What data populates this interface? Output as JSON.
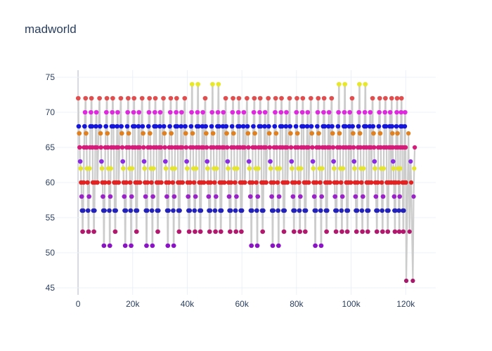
{
  "chart_data": {
    "type": "scatter",
    "title": "madworld",
    "xlabel": "",
    "ylabel": "",
    "xlim": [
      -8000,
      131000
    ],
    "ylim": [
      44,
      76
    ],
    "x_ticks": [
      0,
      20000,
      40000,
      60000,
      80000,
      100000,
      120000
    ],
    "x_tick_labels": [
      "0",
      "20k",
      "40k",
      "60k",
      "80k",
      "100k",
      "120k"
    ],
    "y_ticks": [
      45,
      50,
      55,
      60,
      65,
      70,
      75
    ],
    "y_tick_labels": [
      "45",
      "50",
      "55",
      "60",
      "65",
      "70",
      "75"
    ],
    "grid": true,
    "legend": "none",
    "line_color": "#cccccc",
    "pitch_colors": {
      "46": "#a6196b",
      "51": "#8b12c7",
      "53": "#b3176e",
      "55": "#c26a1a",
      "56": "#2222bb",
      "58": "#9b22c9",
      "60": "#e52222",
      "62": "#e5e52e",
      "63": "#8b2be2",
      "65": "#d81b7a",
      "67": "#e0801f",
      "68": "#1515e0",
      "70": "#e028e0",
      "72": "#e24d4d",
      "74": "#e8e829"
    },
    "section_pattern": [
      [
        0,
        72
      ],
      [
        1,
        68
      ],
      [
        2,
        67
      ],
      [
        3,
        65
      ],
      [
        4,
        63
      ],
      [
        5,
        62
      ],
      [
        6,
        60
      ],
      [
        7,
        58
      ],
      [
        8,
        56
      ],
      [
        9,
        53
      ],
      [
        10,
        56
      ],
      [
        11,
        60
      ],
      [
        12,
        65
      ],
      [
        13,
        68
      ],
      [
        14,
        70
      ],
      [
        15,
        72
      ],
      [
        16,
        67
      ],
      [
        17,
        65
      ],
      [
        18,
        62
      ],
      [
        19,
        60
      ],
      [
        20,
        56
      ],
      [
        21,
        53
      ],
      [
        22,
        58
      ],
      [
        23,
        62
      ],
      [
        24,
        65
      ],
      [
        25,
        68
      ],
      [
        26,
        70
      ],
      [
        27,
        72
      ],
      [
        28,
        68
      ],
      [
        29,
        65
      ],
      [
        30,
        60
      ],
      [
        31,
        56
      ],
      [
        32,
        53
      ],
      [
        33,
        56
      ],
      [
        34,
        60
      ],
      [
        35,
        65
      ],
      [
        36,
        68
      ],
      [
        37,
        70
      ],
      [
        38,
        65
      ],
      [
        39,
        60
      ]
    ],
    "sections": [
      {
        "start": 0,
        "span": 7000,
        "shift": 0
      },
      {
        "start": 7800,
        "span": 7000,
        "shift": 0,
        "low": 51
      },
      {
        "start": 15600,
        "span": 7000,
        "shift": 0,
        "low": 51
      },
      {
        "start": 23400,
        "span": 7000,
        "shift": 0,
        "low": 51
      },
      {
        "start": 31200,
        "span": 7000,
        "shift": 0,
        "low": 51
      },
      {
        "start": 39000,
        "span": 7000,
        "shift": 0,
        "high": 74
      },
      {
        "start": 46500,
        "span": 7000,
        "shift": 0,
        "high": 74
      },
      {
        "start": 54000,
        "span": 7000,
        "shift": 0
      },
      {
        "start": 61800,
        "span": 7000,
        "shift": 0,
        "low": 51
      },
      {
        "start": 69600,
        "span": 7000,
        "shift": 0,
        "low": 51
      },
      {
        "start": 77400,
        "span": 7000,
        "shift": 0
      },
      {
        "start": 85200,
        "span": 7000,
        "shift": 0,
        "low": 51
      },
      {
        "start": 92800,
        "span": 7000,
        "shift": 0,
        "high": 74
      },
      {
        "start": 100300,
        "span": 7000,
        "shift": 0,
        "high": 74
      },
      {
        "start": 107800,
        "span": 6800,
        "shift": 0
      },
      {
        "start": 114800,
        "span": 5200,
        "shift": 0
      }
    ],
    "extra_points": [
      [
        120200,
        46
      ],
      [
        121400,
        53
      ],
      [
        121800,
        63
      ],
      [
        122600,
        46
      ],
      [
        122900,
        58
      ],
      [
        123100,
        62
      ],
      [
        123300,
        65
      ],
      [
        121000,
        67
      ],
      [
        122000,
        60
      ]
    ]
  }
}
